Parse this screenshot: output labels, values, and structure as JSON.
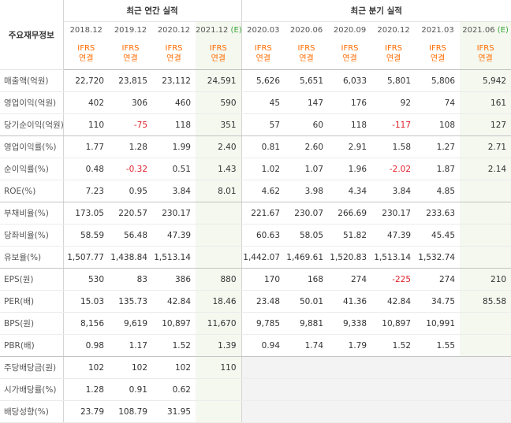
{
  "table": {
    "header": {
      "title": "주요재무정보",
      "annual": "최근 연간 실적",
      "quarterly": "최근 분기 실적"
    },
    "annual_count": 4,
    "columns": [
      {
        "period": "2018.12",
        "standard": "IFRS",
        "basis": "연결"
      },
      {
        "period": "2019.12",
        "standard": "IFRS",
        "basis": "연결"
      },
      {
        "period": "2020.12",
        "standard": "IFRS",
        "basis": "연결"
      },
      {
        "period": "2021.12",
        "estimate": "(E)",
        "standard": "IFRS",
        "basis": "연결"
      },
      {
        "period": "2020.03",
        "standard": "IFRS",
        "basis": "연결"
      },
      {
        "period": "2020.06",
        "standard": "IFRS",
        "basis": "연결"
      },
      {
        "period": "2020.09",
        "standard": "IFRS",
        "basis": "연결"
      },
      {
        "period": "2020.12",
        "standard": "IFRS",
        "basis": "연결"
      },
      {
        "period": "2021.03",
        "standard": "IFRS",
        "basis": "연결"
      },
      {
        "period": "2021.06",
        "estimate": "(E)",
        "standard": "IFRS",
        "basis": "연결"
      }
    ],
    "groups": [
      {
        "rows": [
          {
            "label": "매출액(억원)",
            "values": [
              "22,720",
              "23,815",
              "23,112",
              "24,591",
              "5,626",
              "5,651",
              "6,033",
              "5,801",
              "5,806",
              "5,942"
            ]
          },
          {
            "label": "영업이익(억원)",
            "values": [
              "402",
              "306",
              "460",
              "590",
              "45",
              "147",
              "176",
              "92",
              "74",
              "161"
            ]
          },
          {
            "label": "당기순이익(억원)",
            "values": [
              "110",
              "-75",
              "118",
              "351",
              "57",
              "60",
              "118",
              "-117",
              "108",
              "127"
            ]
          }
        ]
      },
      {
        "rows": [
          {
            "label": "영업이익률(%)",
            "values": [
              "1.77",
              "1.28",
              "1.99",
              "2.40",
              "0.81",
              "2.60",
              "2.91",
              "1.58",
              "1.27",
              "2.71"
            ]
          },
          {
            "label": "순이익률(%)",
            "values": [
              "0.48",
              "-0.32",
              "0.51",
              "1.43",
              "1.02",
              "1.07",
              "1.96",
              "-2.02",
              "1.87",
              "2.14"
            ]
          },
          {
            "label": "ROE(%)",
            "values": [
              "7.23",
              "0.95",
              "3.84",
              "8.01",
              "4.62",
              "3.98",
              "4.34",
              "3.84",
              "4.85",
              null
            ]
          }
        ]
      },
      {
        "rows": [
          {
            "label": "부채비율(%)",
            "values": [
              "173.05",
              "220.57",
              "230.17",
              null,
              "221.67",
              "230.07",
              "266.69",
              "230.17",
              "233.63",
              null
            ]
          },
          {
            "label": "당좌비율(%)",
            "values": [
              "58.59",
              "56.48",
              "47.39",
              null,
              "60.63",
              "58.05",
              "51.82",
              "47.39",
              "45.45",
              null
            ]
          },
          {
            "label": "유보율(%)",
            "values": [
              "1,507.77",
              "1,438.84",
              "1,513.14",
              null,
              "1,442.07",
              "1,469.61",
              "1,520.83",
              "1,513.14",
              "1,532.74",
              null
            ]
          }
        ]
      },
      {
        "rows": [
          {
            "label": "EPS(원)",
            "values": [
              "530",
              "83",
              "386",
              "880",
              "170",
              "168",
              "274",
              "-225",
              "274",
              "210"
            ]
          },
          {
            "label": "PER(배)",
            "values": [
              "15.03",
              "135.73",
              "42.84",
              "18.46",
              "23.48",
              "50.01",
              "41.36",
              "42.84",
              "34.75",
              "85.58"
            ]
          },
          {
            "label": "BPS(원)",
            "values": [
              "8,156",
              "9,619",
              "10,897",
              "11,670",
              "9,785",
              "9,881",
              "9,338",
              "10,897",
              "10,991",
              null
            ]
          },
          {
            "label": "PBR(배)",
            "values": [
              "0.98",
              "1.17",
              "1.52",
              "1.39",
              "0.94",
              "1.74",
              "1.79",
              "1.52",
              "1.55",
              null
            ]
          }
        ]
      },
      {
        "rows": [
          {
            "label": "주당배당금(원)",
            "values": [
              "102",
              "102",
              "102",
              "110",
              null,
              null,
              null,
              null,
              null,
              null
            ]
          },
          {
            "label": "시가배당률(%)",
            "values": [
              "1.28",
              "0.91",
              "0.62",
              null,
              null,
              null,
              null,
              null,
              null,
              null
            ]
          },
          {
            "label": "배당성향(%)",
            "values": [
              "23.79",
              "108.79",
              "31.95",
              null,
              null,
              null,
              null,
              null,
              null,
              null
            ]
          }
        ]
      }
    ]
  }
}
